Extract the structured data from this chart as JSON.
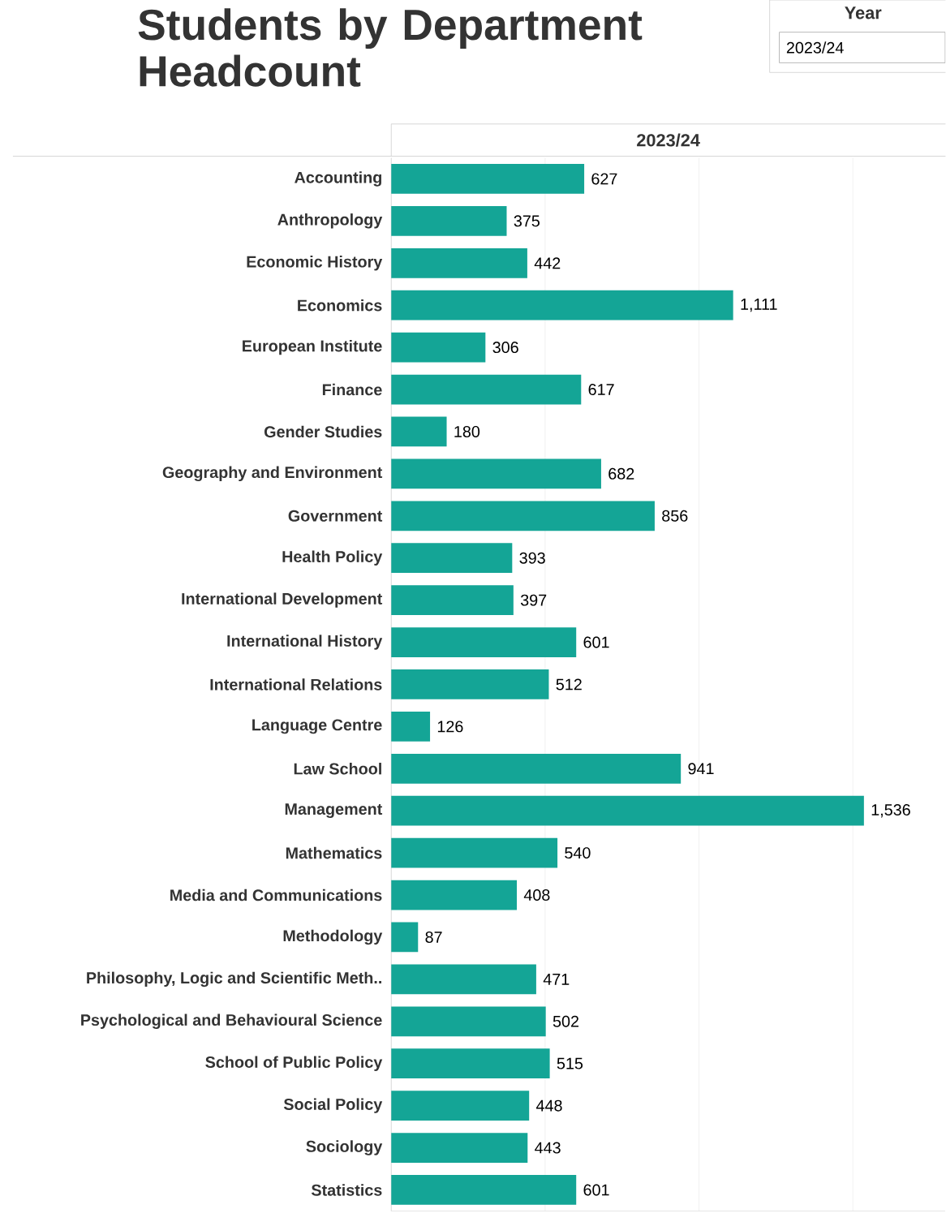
{
  "chart_data": {
    "type": "bar",
    "orientation": "horizontal",
    "title": "Students by Department Headcount",
    "subtitle": "2023/24",
    "annotations": [
      "Year",
      "2023/24"
    ],
    "categories": [
      "Accounting",
      "Anthropology",
      "Economic History",
      "Economics",
      "European Institute",
      "Finance",
      "Gender Studies",
      "Geography and Environment",
      "Government",
      "Health Policy",
      "International Development",
      "International History",
      "International Relations",
      "Language Centre",
      "Law School",
      "Management",
      "Mathematics",
      "Media and Communications",
      "Methodology",
      "Philosophy, Logic and Scientific Meth..",
      "Psychological and Behavioural Science",
      "School of Public Policy",
      "Social Policy",
      "Sociology",
      "Statistics"
    ],
    "values": [
      627,
      375,
      442,
      1111,
      306,
      617,
      180,
      682,
      856,
      393,
      397,
      601,
      512,
      126,
      941,
      1536,
      540,
      408,
      87,
      471,
      502,
      515,
      448,
      443,
      601
    ],
    "value_labels": [
      "627",
      "375",
      "442",
      "1,111",
      "306",
      "617",
      "180",
      "682",
      "856",
      "393",
      "397",
      "601",
      "512",
      "126",
      "941",
      "1,536",
      "540",
      "408",
      "87",
      "471",
      "502",
      "515",
      "448",
      "443",
      "601"
    ],
    "color": "#14a596",
    "xlim": [
      0,
      1800
    ],
    "xticks": [
      {
        "value": 500,
        "label": null
      },
      {
        "value": 1000,
        "label": null
      },
      {
        "value": 1500,
        "label": null
      }
    ],
    "grid": "x",
    "tick_labels": "y"
  }
}
